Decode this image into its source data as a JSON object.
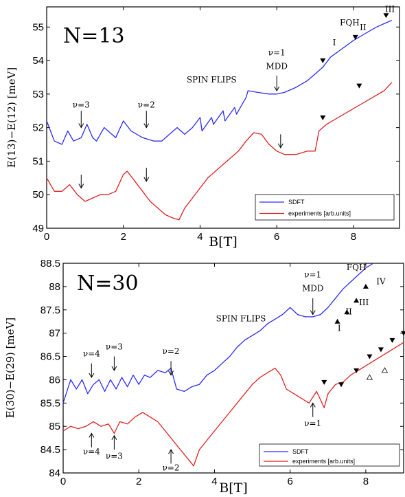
{
  "chart_data": [
    {
      "type": "line",
      "title": "N=13",
      "xlabel": "B[T]",
      "ylabel": "E(13)−E(12) [meV]",
      "xlim": [
        0,
        9.2
      ],
      "ylim": [
        49,
        55.6
      ],
      "xticks": [
        0,
        2,
        4,
        6,
        8
      ],
      "yticks": [
        49,
        50,
        51,
        52,
        53,
        54,
        55
      ],
      "legend_position": "bottom-right",
      "series": [
        {
          "name": "SDFT",
          "color": "#2a2aff",
          "x": [
            0,
            0.2,
            0.4,
            0.55,
            0.7,
            0.9,
            1.05,
            1.2,
            1.3,
            1.5,
            1.8,
            2.0,
            2.2,
            2.5,
            2.8,
            3.0,
            3.2,
            3.4,
            3.6,
            3.8,
            4.0,
            4.05,
            4.3,
            4.35,
            4.6,
            4.65,
            4.9,
            4.95,
            5.2,
            5.25,
            5.5,
            5.8,
            6.0,
            6.2,
            6.5,
            6.8,
            7.0,
            7.2,
            7.4,
            7.7,
            8.0,
            8.3,
            8.6,
            8.8,
            9.0
          ],
          "y": [
            52.2,
            51.6,
            51.5,
            51.9,
            51.6,
            51.7,
            52.1,
            51.7,
            51.6,
            52.0,
            51.7,
            52.2,
            51.9,
            51.7,
            51.6,
            51.6,
            51.8,
            52.0,
            51.8,
            52.0,
            52.3,
            51.9,
            52.3,
            52.1,
            52.5,
            52.2,
            52.6,
            52.4,
            52.9,
            53.1,
            53.05,
            53.0,
            53.0,
            53.05,
            53.2,
            53.4,
            53.6,
            53.8,
            54.1,
            54.35,
            54.6,
            54.8,
            55.0,
            55.1,
            55.2
          ]
        },
        {
          "name": "experiments [arb.units]",
          "color": "#e02020",
          "x": [
            0,
            0.2,
            0.4,
            0.6,
            0.8,
            1.0,
            1.2,
            1.4,
            1.6,
            1.8,
            2.0,
            2.1,
            2.3,
            2.5,
            2.7,
            2.9,
            3.1,
            3.3,
            3.45,
            3.6,
            3.8,
            4.0,
            4.2,
            4.4,
            4.6,
            4.8,
            5.0,
            5.2,
            5.4,
            5.6,
            5.8,
            6.0,
            6.2,
            6.5,
            6.8,
            7.0,
            7.1,
            7.3,
            7.6,
            7.9,
            8.2,
            8.5,
            8.8,
            9.0
          ],
          "y": [
            50.5,
            50.1,
            50.1,
            50.3,
            50.0,
            49.8,
            49.9,
            50.0,
            50.0,
            50.1,
            50.6,
            50.7,
            50.4,
            50.1,
            49.8,
            49.6,
            49.4,
            49.3,
            49.25,
            49.6,
            49.9,
            50.2,
            50.5,
            50.7,
            50.9,
            51.1,
            51.3,
            51.6,
            51.85,
            51.8,
            51.5,
            51.3,
            51.2,
            51.2,
            51.3,
            51.3,
            51.9,
            52.1,
            52.3,
            52.5,
            52.7,
            52.9,
            53.1,
            53.35
          ]
        }
      ],
      "annotations": [
        {
          "text": "ν=3",
          "x": 0.9,
          "y": 52.6
        },
        {
          "text": "ν=2",
          "x": 2.6,
          "y": 52.6
        },
        {
          "text": "SPIN FLIPS",
          "x": 4.3,
          "y": 53.35
        },
        {
          "text": "ν=1",
          "x": 6.0,
          "y": 54.15
        },
        {
          "text": "MDD",
          "x": 6.0,
          "y": 53.75
        },
        {
          "text": "FQH",
          "x": 7.9,
          "y": 55.05
        },
        {
          "text": "I",
          "x": 7.5,
          "y": 54.45
        },
        {
          "text": "II",
          "x": 8.25,
          "y": 54.9
        },
        {
          "text": "III",
          "x": 8.95,
          "y": 55.45
        }
      ],
      "arrows_down": [
        [
          0.9,
          52.5,
          52.0
        ],
        [
          2.6,
          52.5,
          52.0
        ],
        [
          6.0,
          53.55,
          53.1
        ],
        [
          0.9,
          50.6,
          50.2
        ],
        [
          2.6,
          50.8,
          50.4
        ],
        [
          6.1,
          51.8,
          51.4
        ]
      ],
      "arrows_up": [],
      "markers_filled": [
        [
          7.2,
          54.0
        ],
        [
          8.05,
          54.7
        ],
        [
          8.85,
          55.35
        ],
        [
          7.2,
          52.3
        ],
        [
          8.15,
          53.25
        ]
      ],
      "markers_open": []
    },
    {
      "type": "line",
      "title": "N=30",
      "xlabel": "B[T]",
      "ylabel": "E(30)−E(29) [meV]",
      "xlim": [
        0,
        9
      ],
      "ylim": [
        84,
        88.5
      ],
      "xticks": [
        0,
        2,
        4,
        6,
        8
      ],
      "yticks": [
        84,
        84.5,
        85,
        85.5,
        86,
        86.5,
        87,
        87.5,
        88,
        88.5
      ],
      "legend_position": "bottom-right",
      "series": [
        {
          "name": "SDFT",
          "color": "#2a2aff",
          "x": [
            0,
            0.2,
            0.35,
            0.5,
            0.65,
            0.8,
            0.95,
            1.1,
            1.25,
            1.4,
            1.55,
            1.7,
            1.85,
            2.0,
            2.15,
            2.3,
            2.5,
            2.7,
            2.85,
            3.0,
            3.2,
            3.4,
            3.6,
            3.8,
            4.0,
            4.2,
            4.4,
            4.6,
            4.8,
            5.0,
            5.2,
            5.4,
            5.6,
            5.8,
            6.0,
            6.2,
            6.4,
            6.6,
            6.8,
            7.0,
            7.2,
            7.4,
            7.6,
            7.8,
            8.0,
            8.2
          ],
          "y": [
            85.5,
            86.0,
            85.8,
            86.0,
            85.7,
            85.9,
            86.0,
            85.75,
            86.0,
            85.8,
            86.05,
            85.85,
            86.1,
            85.9,
            86.1,
            86.05,
            86.2,
            86.15,
            86.25,
            85.8,
            85.75,
            85.85,
            85.9,
            86.1,
            86.2,
            86.35,
            86.5,
            86.7,
            86.85,
            86.95,
            87.05,
            87.2,
            87.3,
            87.4,
            87.55,
            87.4,
            87.35,
            87.35,
            87.4,
            87.55,
            87.75,
            87.95,
            88.1,
            88.25,
            88.4,
            88.5
          ]
        },
        {
          "name": "experiments [arb.units]",
          "color": "#e02020",
          "x": [
            0,
            0.2,
            0.4,
            0.6,
            0.8,
            1.0,
            1.2,
            1.35,
            1.5,
            1.7,
            1.9,
            2.1,
            2.3,
            2.5,
            2.7,
            2.9,
            3.1,
            3.3,
            3.45,
            3.6,
            3.8,
            4.0,
            4.2,
            4.4,
            4.6,
            4.8,
            5.0,
            5.2,
            5.4,
            5.6,
            5.75,
            5.9,
            6.1,
            6.3,
            6.5,
            6.7,
            6.9,
            7.0,
            7.2,
            7.4,
            7.6,
            7.8,
            8.0,
            8.3,
            8.6,
            9.0
          ],
          "y": [
            84.9,
            85.0,
            84.95,
            85.0,
            85.1,
            85.0,
            85.05,
            84.85,
            85.1,
            85.05,
            85.2,
            85.3,
            85.2,
            85.1,
            84.9,
            84.7,
            84.5,
            84.3,
            84.15,
            84.5,
            84.7,
            84.9,
            85.1,
            85.3,
            85.5,
            85.7,
            85.9,
            86.05,
            86.15,
            86.25,
            86.1,
            85.8,
            85.7,
            85.6,
            85.5,
            85.75,
            85.4,
            85.7,
            85.9,
            85.95,
            86.1,
            86.2,
            86.3,
            86.45,
            86.6,
            86.8
          ]
        }
      ],
      "annotations": [
        {
          "text": "ν=4",
          "x": 0.75,
          "y": 86.5
        },
        {
          "text": "ν=3",
          "x": 1.35,
          "y": 86.65
        },
        {
          "text": "ν=2",
          "x": 2.85,
          "y": 86.55
        },
        {
          "text": "SPIN FLIPS",
          "x": 4.7,
          "y": 87.25
        },
        {
          "text": "ν=1",
          "x": 6.6,
          "y": 88.2
        },
        {
          "text": "MDD",
          "x": 6.6,
          "y": 87.9
        },
        {
          "text": "FQH",
          "x": 7.75,
          "y": 88.35
        },
        {
          "text": "I",
          "x": 7.3,
          "y": 87.05
        },
        {
          "text": "II",
          "x": 7.55,
          "y": 87.4
        },
        {
          "text": "III",
          "x": 7.95,
          "y": 87.6
        },
        {
          "text": "IV",
          "x": 8.4,
          "y": 88.05
        },
        {
          "text": "ν=4",
          "x": 0.75,
          "y": 84.4
        },
        {
          "text": "ν=3",
          "x": 1.35,
          "y": 84.3
        },
        {
          "text": "ν=2",
          "x": 2.85,
          "y": 84.05
        },
        {
          "text": "ν=1",
          "x": 6.6,
          "y": 85.0
        }
      ],
      "arrows_down": [
        [
          0.75,
          86.35,
          86.05
        ],
        [
          1.35,
          86.5,
          86.2
        ],
        [
          2.85,
          86.4,
          86.1
        ],
        [
          6.6,
          87.75,
          87.4
        ]
      ],
      "arrows_up": [
        [
          0.75,
          84.55,
          84.85
        ],
        [
          1.35,
          84.5,
          84.8
        ],
        [
          2.85,
          84.2,
          84.5
        ],
        [
          6.6,
          85.2,
          85.5
        ]
      ],
      "markers_filled": [
        [
          7.25,
          87.25
        ],
        [
          7.5,
          87.45
        ],
        [
          7.75,
          87.7
        ],
        [
          8.0,
          88.0
        ],
        [
          6.9,
          85.95
        ],
        [
          7.35,
          85.9
        ],
        [
          7.75,
          86.2
        ],
        [
          8.1,
          86.5
        ],
        [
          8.4,
          86.65
        ],
        [
          8.7,
          86.85
        ],
        [
          9.0,
          87.0
        ]
      ],
      "markers_open": [
        [
          8.1,
          86.05
        ],
        [
          8.5,
          86.2
        ]
      ]
    }
  ]
}
